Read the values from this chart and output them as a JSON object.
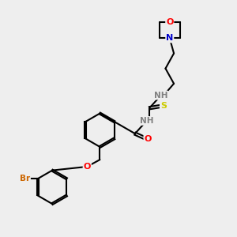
{
  "background_color": "#eeeeee",
  "atom_colors": {
    "C": "#000000",
    "N": "#0000cc",
    "O": "#ff0000",
    "S": "#cccc00",
    "Br": "#cc6600",
    "H": "#808080"
  },
  "bond_color": "#000000",
  "bond_width": 1.5,
  "figsize": [
    3.0,
    3.0
  ],
  "dpi": 100
}
